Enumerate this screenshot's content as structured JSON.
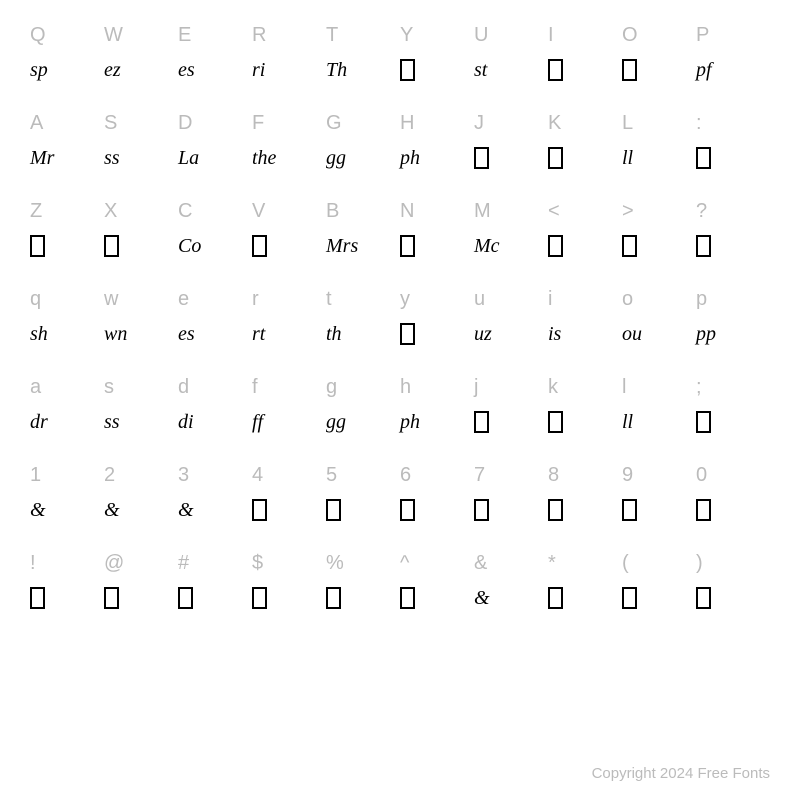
{
  "grid": {
    "columns": 10,
    "label_color": "#bbbbbb",
    "glyph_color": "#000000",
    "background_color": "#ffffff",
    "label_fontsize": 20,
    "glyph_fontsize": 22,
    "rows": [
      {
        "keys": [
          "Q",
          "W",
          "E",
          "R",
          "T",
          "Y",
          "U",
          "I",
          "O",
          "P"
        ],
        "glyphs": [
          {
            "text": "sp",
            "style": "script"
          },
          {
            "text": "ez",
            "style": "script"
          },
          {
            "text": "es",
            "style": "script"
          },
          {
            "text": "ri",
            "style": "script"
          },
          {
            "text": "Th",
            "style": "script"
          },
          {
            "text": "",
            "style": "missing"
          },
          {
            "text": "st",
            "style": "script"
          },
          {
            "text": "",
            "style": "missing"
          },
          {
            "text": "",
            "style": "missing"
          },
          {
            "text": "pf",
            "style": "script"
          }
        ]
      },
      {
        "keys": [
          "A",
          "S",
          "D",
          "F",
          "G",
          "H",
          "J",
          "K",
          "L",
          ":"
        ],
        "glyphs": [
          {
            "text": "Mr",
            "style": "script"
          },
          {
            "text": "ss",
            "style": "script"
          },
          {
            "text": "La",
            "style": "script"
          },
          {
            "text": "the",
            "style": "script"
          },
          {
            "text": "gg",
            "style": "script"
          },
          {
            "text": "ph",
            "style": "script"
          },
          {
            "text": "",
            "style": "missing"
          },
          {
            "text": "",
            "style": "missing"
          },
          {
            "text": "ll",
            "style": "script"
          },
          {
            "text": "",
            "style": "missing"
          }
        ]
      },
      {
        "keys": [
          "Z",
          "X",
          "C",
          "V",
          "B",
          "N",
          "M",
          "<",
          ">",
          "?"
        ],
        "glyphs": [
          {
            "text": "",
            "style": "missing"
          },
          {
            "text": "",
            "style": "missing"
          },
          {
            "text": "Co",
            "style": "script"
          },
          {
            "text": "",
            "style": "missing"
          },
          {
            "text": "Mrs",
            "style": "script"
          },
          {
            "text": "",
            "style": "missing"
          },
          {
            "text": "Mc",
            "style": "script"
          },
          {
            "text": "",
            "style": "missing"
          },
          {
            "text": "",
            "style": "missing"
          },
          {
            "text": "",
            "style": "missing"
          }
        ]
      },
      {
        "keys": [
          "q",
          "w",
          "e",
          "r",
          "t",
          "y",
          "u",
          "i",
          "o",
          "p"
        ],
        "glyphs": [
          {
            "text": "sh",
            "style": "script"
          },
          {
            "text": "wn",
            "style": "script"
          },
          {
            "text": "es",
            "style": "script"
          },
          {
            "text": "rt",
            "style": "script"
          },
          {
            "text": "th",
            "style": "script"
          },
          {
            "text": "",
            "style": "missing"
          },
          {
            "text": "uz",
            "style": "script"
          },
          {
            "text": "is",
            "style": "script"
          },
          {
            "text": "ou",
            "style": "script"
          },
          {
            "text": "pp",
            "style": "script"
          }
        ]
      },
      {
        "keys": [
          "a",
          "s",
          "d",
          "f",
          "g",
          "h",
          "j",
          "k",
          "l",
          ";"
        ],
        "glyphs": [
          {
            "text": "dr",
            "style": "script"
          },
          {
            "text": "ss",
            "style": "script"
          },
          {
            "text": "di",
            "style": "script"
          },
          {
            "text": "ff",
            "style": "script"
          },
          {
            "text": "gg",
            "style": "script"
          },
          {
            "text": "ph",
            "style": "script"
          },
          {
            "text": "",
            "style": "missing"
          },
          {
            "text": "",
            "style": "missing"
          },
          {
            "text": "ll",
            "style": "script"
          },
          {
            "text": "",
            "style": "missing"
          }
        ]
      },
      {
        "keys": [
          "1",
          "2",
          "3",
          "4",
          "5",
          "6",
          "7",
          "8",
          "9",
          "0"
        ],
        "glyphs": [
          {
            "text": "&",
            "style": "script"
          },
          {
            "text": "&",
            "style": "script"
          },
          {
            "text": "&",
            "style": "script"
          },
          {
            "text": "",
            "style": "missing"
          },
          {
            "text": "",
            "style": "missing"
          },
          {
            "text": "",
            "style": "missing"
          },
          {
            "text": "",
            "style": "missing"
          },
          {
            "text": "",
            "style": "missing"
          },
          {
            "text": "",
            "style": "missing"
          },
          {
            "text": "",
            "style": "missing"
          }
        ]
      },
      {
        "keys": [
          "!",
          "@",
          "#",
          "$",
          "%",
          "^",
          "&",
          "*",
          "(",
          ")"
        ],
        "glyphs": [
          {
            "text": "",
            "style": "missing"
          },
          {
            "text": "",
            "style": "missing"
          },
          {
            "text": "",
            "style": "missing"
          },
          {
            "text": "",
            "style": "missing"
          },
          {
            "text": "",
            "style": "missing"
          },
          {
            "text": "",
            "style": "missing"
          },
          {
            "text": "&",
            "style": "script"
          },
          {
            "text": "",
            "style": "missing"
          },
          {
            "text": "",
            "style": "missing"
          },
          {
            "text": "",
            "style": "missing"
          }
        ]
      }
    ]
  },
  "footer": "Copyright 2024 Free Fonts"
}
